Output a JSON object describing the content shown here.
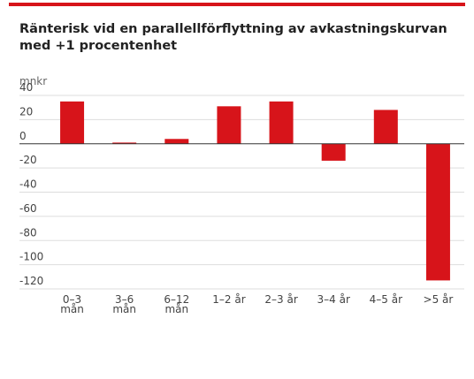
{
  "chart_data": {
    "type": "bar",
    "title": "Ränterisk vid en parallellförflyttning av avkastningskurvan med +1 procentenhet",
    "y_label": "mnkr",
    "categories": [
      "0–3 mån",
      "3–6 mån",
      "6–12 mån",
      "1–2 år",
      "2–3 år",
      "3–4 år",
      "4–5 år",
      ">5 år"
    ],
    "values": [
      35,
      1,
      4,
      31,
      35,
      -14,
      28,
      -113
    ],
    "color": "#d7141a",
    "ylim": [
      -120,
      40
    ],
    "yticks": [
      40,
      20,
      0,
      -20,
      -40,
      -60,
      -80,
      -100,
      -120
    ],
    "grid": true
  }
}
